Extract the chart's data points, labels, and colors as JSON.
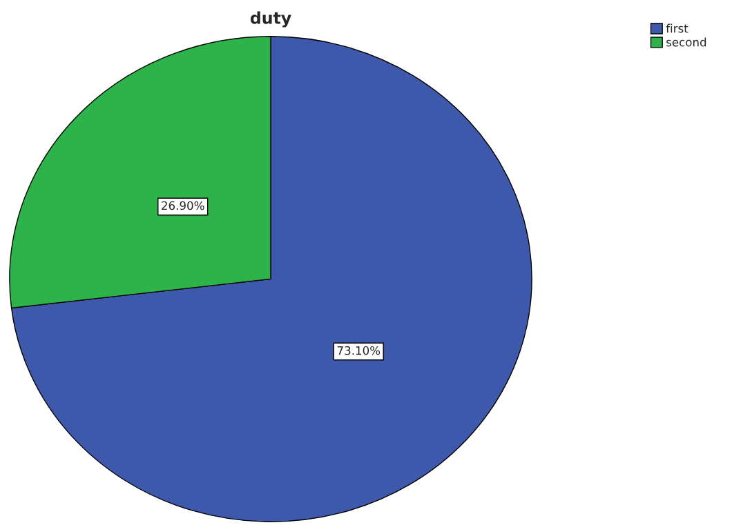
{
  "chart_data": {
    "type": "pie",
    "title": "duty",
    "categories": [
      "first",
      "second"
    ],
    "values": [
      73.1,
      26.9
    ],
    "value_labels": [
      "73.10%",
      "26.90%"
    ],
    "colors": [
      "#3e58ac",
      "#2db34a"
    ],
    "legend": "top right"
  }
}
